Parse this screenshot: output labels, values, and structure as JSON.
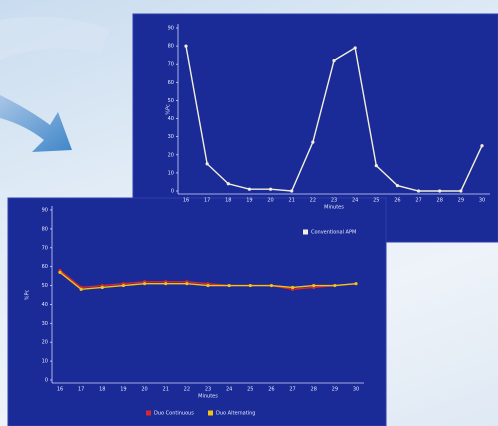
{
  "chart_data": [
    {
      "type": "line",
      "x_label": "Minutes",
      "y_label": "%Pc",
      "categories": [
        "16",
        "17",
        "18",
        "19",
        "20",
        "21",
        "22",
        "23",
        "24",
        "25",
        "26",
        "27",
        "28",
        "29",
        "30"
      ],
      "ylim": [
        0,
        90
      ],
      "yticks": [
        0,
        10,
        20,
        30,
        40,
        50,
        60,
        70,
        80,
        90
      ],
      "series": [
        {
          "name": "Conventional APM",
          "color": "#f2f0dc",
          "values": [
            80,
            15,
            4,
            1,
            1,
            0,
            27,
            72,
            79,
            14,
            3,
            0,
            0,
            0,
            25
          ]
        }
      ]
    },
    {
      "type": "line",
      "x_label": "Minutes",
      "y_label": "%Pc",
      "categories": [
        "16",
        "17",
        "18",
        "19",
        "20",
        "21",
        "22",
        "23",
        "24",
        "25",
        "26",
        "27",
        "28",
        "29",
        "30"
      ],
      "ylim": [
        0,
        90
      ],
      "yticks": [
        0,
        10,
        20,
        30,
        40,
        50,
        60,
        70,
        80,
        90
      ],
      "series": [
        {
          "name": "Duo Continuous",
          "color": "#d8262a",
          "values": [
            58,
            49,
            50,
            51,
            52,
            52,
            52,
            51,
            50,
            50,
            50,
            48,
            49,
            50,
            51
          ]
        },
        {
          "name": "Duo Alternating",
          "color": "#f2c21a",
          "values": [
            57,
            48,
            49,
            50,
            51,
            51,
            51,
            50,
            50,
            50,
            50,
            49,
            50,
            50,
            51
          ]
        }
      ]
    }
  ]
}
